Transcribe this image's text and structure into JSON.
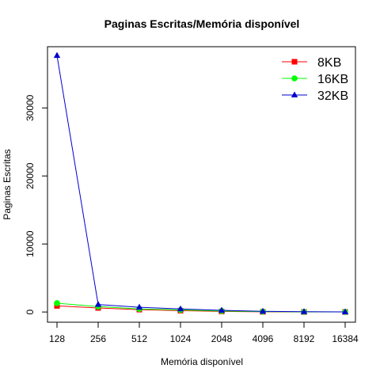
{
  "chart_data": {
    "type": "line",
    "title": "Paginas Escritas/Memória disponível",
    "xlabel": "Memória disponível",
    "ylabel": "Paginas Escritas",
    "categories": [
      "128",
      "256",
      "512",
      "1024",
      "2048",
      "4096",
      "8192",
      "16384"
    ],
    "ylim": [
      -1500,
      39000
    ],
    "yticks": [
      0,
      10000,
      20000,
      30000
    ],
    "yticks_rotated": true,
    "grid": false,
    "legend_position": "top-right",
    "series": [
      {
        "name": "8KB",
        "color": "#ff0000",
        "marker": "square",
        "values": [
          900,
          600,
          350,
          200,
          80,
          30,
          15,
          10
        ]
      },
      {
        "name": "16KB",
        "color": "#00ff00",
        "marker": "circle",
        "values": [
          1300,
          800,
          450,
          300,
          150,
          60,
          25,
          12
        ]
      },
      {
        "name": "32KB",
        "color": "#0000cd",
        "marker": "triangle",
        "values": [
          37700,
          1100,
          700,
          450,
          250,
          100,
          40,
          20
        ]
      }
    ]
  }
}
